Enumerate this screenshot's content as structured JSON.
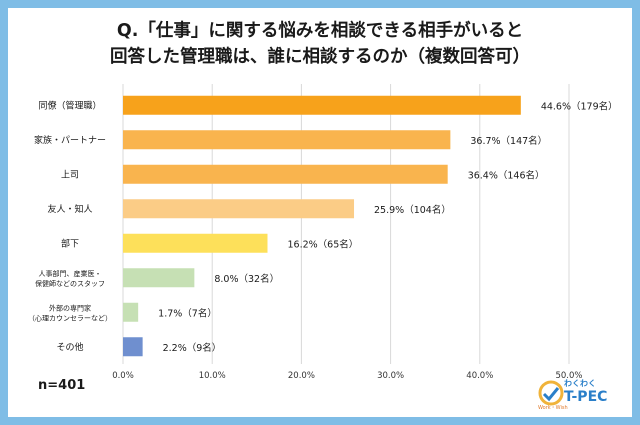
{
  "title": {
    "line1": "Q.「仕事」に関する悩みを相談できる相手がいると",
    "line2": "回答した管理職は、誰に相談するのか（複数回答可）"
  },
  "footer": {
    "n": "n=401",
    "logo_sub": "わくわく",
    "logo_main": "T-PEC",
    "logo_tag": "Work・Wish"
  },
  "colors": {
    "background": "#7fbde6",
    "bars": [
      "#f7a21b",
      "#f9b44e",
      "#f9b44e",
      "#fbcc86",
      "#fde05a",
      "#c6e0b4",
      "#c6e0b4",
      "#6f8fcf"
    ]
  },
  "chart_data": {
    "type": "bar",
    "orientation": "horizontal",
    "categories": [
      [
        "同僚（管理職）"
      ],
      [
        "家族・パートナー"
      ],
      [
        "上司"
      ],
      [
        "友人・知人"
      ],
      [
        "部下"
      ],
      [
        "人事部門、産業医・",
        "保健師などのスタッフ"
      ],
      [
        "外部の専門家",
        "（心理カウンセラーなど）"
      ],
      [
        "その他"
      ]
    ],
    "values": [
      44.6,
      36.7,
      36.4,
      25.9,
      16.2,
      8.0,
      1.7,
      2.2
    ],
    "value_labels": [
      "44.6%（179名）",
      "36.7%（147名）",
      "36.4%（146名）",
      "25.9%（104名）",
      "16.2%（65名）",
      "8.0%（32名）",
      "1.7%（7名）",
      "2.2%（9名）"
    ],
    "xlim": [
      0,
      50
    ],
    "xticks": [
      0,
      10,
      20,
      30,
      40,
      50
    ],
    "xtick_labels": [
      "0.0%",
      "10.0%",
      "20.0%",
      "30.0%",
      "40.0%",
      "50.0%"
    ],
    "grid": "vertical",
    "xlabel": "",
    "ylabel": ""
  }
}
